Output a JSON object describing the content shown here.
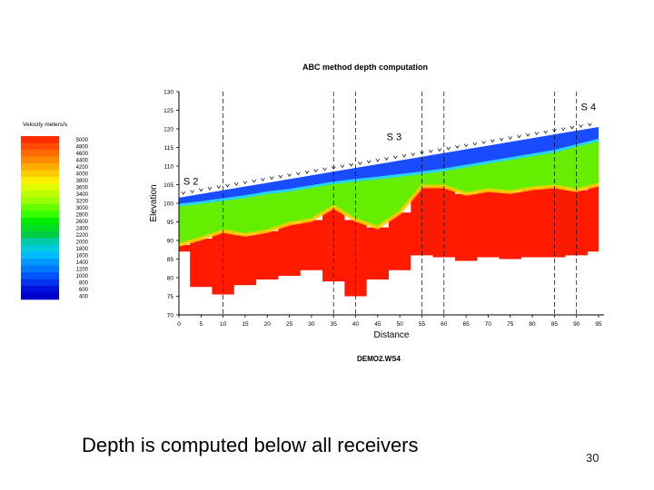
{
  "slide": {
    "caption": "Depth is computed below all receivers",
    "page_number": "30"
  },
  "chart_data": {
    "type": "heatmap",
    "title": "ABC method depth computation",
    "subtitle": "DEMO2.WS4",
    "xlabel": "Distance",
    "ylabel": "Elevation",
    "xlim": [
      0,
      95
    ],
    "ylim": [
      70,
      130
    ],
    "x_ticks": [
      0,
      5,
      10,
      15,
      20,
      25,
      30,
      35,
      40,
      45,
      50,
      55,
      60,
      65,
      70,
      75,
      80,
      85,
      90,
      95
    ],
    "y_ticks": [
      70,
      75,
      80,
      85,
      90,
      95,
      100,
      105,
      110,
      115,
      120,
      125,
      130
    ],
    "shot_lines_x": [
      10,
      35,
      40,
      55,
      60,
      85,
      90
    ],
    "legend": {
      "title": "Velocity meters/s",
      "placement": "left",
      "values": [
        5000,
        4800,
        4600,
        4400,
        4200,
        4000,
        3800,
        3600,
        3400,
        3200,
        3000,
        2800,
        2600,
        2400,
        2200,
        2000,
        1800,
        1600,
        1400,
        1200,
        1000,
        800,
        600,
        400
      ],
      "labels": [
        "5000",
        "4800",
        "4600",
        "4400",
        "4200",
        "4000",
        "3800",
        "3600",
        "3400",
        "3200",
        "3000",
        "2800",
        "2600",
        "2400",
        "2200",
        "2000",
        "1800",
        "1600",
        "1400",
        "1200",
        "1000",
        "800",
        "600",
        "400"
      ],
      "colors": [
        "#ff2a00",
        "#ff4a00",
        "#ff6a00",
        "#ff8a00",
        "#ffaa00",
        "#ffcc00",
        "#ffee00",
        "#ddff00",
        "#bbff00",
        "#99ff00",
        "#66ff00",
        "#33ff00",
        "#00ee00",
        "#00dd22",
        "#00cc44",
        "#00ccaa",
        "#00ccdd",
        "#00bbff",
        "#0099ff",
        "#0077ff",
        "#0055ff",
        "#0033ee",
        "#0011dd",
        "#0000cc"
      ]
    },
    "layer_colors": {
      "low_velocity": "#1a4cff",
      "low_velocity_light": "#28d2ff",
      "mid_velocity": "#66ee00",
      "high_velocity": "#ff1a00"
    },
    "shots": [
      {
        "label": "S 2",
        "x": 1,
        "y": 105
      },
      {
        "label": "S 3",
        "x": 47,
        "y": 117
      },
      {
        "label": "S 4",
        "x": 91,
        "y": 125
      }
    ],
    "profile_x": [
      0,
      5,
      10,
      15,
      20,
      25,
      30,
      35,
      40,
      45,
      50,
      55,
      60,
      65,
      70,
      75,
      80,
      85,
      90,
      95
    ],
    "surface": [
      101.5,
      102.5,
      103.5,
      104.5,
      105.5,
      106.5,
      107.5,
      108.5,
      109.5,
      110.5,
      111.5,
      112.5,
      113.5,
      114.5,
      115.5,
      116.5,
      117.5,
      118.5,
      119.5,
      120.5
    ],
    "blue_layer_base": [
      99.5,
      100.2,
      101,
      101.8,
      102.8,
      103.5,
      104.5,
      105.5,
      106.2,
      106.8,
      107.5,
      108.2,
      109,
      110,
      111,
      112,
      113,
      114,
      115.5,
      117
    ],
    "refractor_top": [
      88.8,
      90.5,
      92.5,
      91.5,
      92.5,
      94.5,
      95.5,
      99,
      95.5,
      93.5,
      97.5,
      104.5,
      104.5,
      102.5,
      103.5,
      103,
      104,
      104.5,
      103.5,
      105
    ],
    "refractor_base": [
      87,
      77.5,
      75.5,
      78,
      79.5,
      80.5,
      82,
      79,
      75,
      79.5,
      82,
      86,
      85.5,
      84.5,
      85.5,
      85,
      85.5,
      85.5,
      86,
      87
    ]
  }
}
